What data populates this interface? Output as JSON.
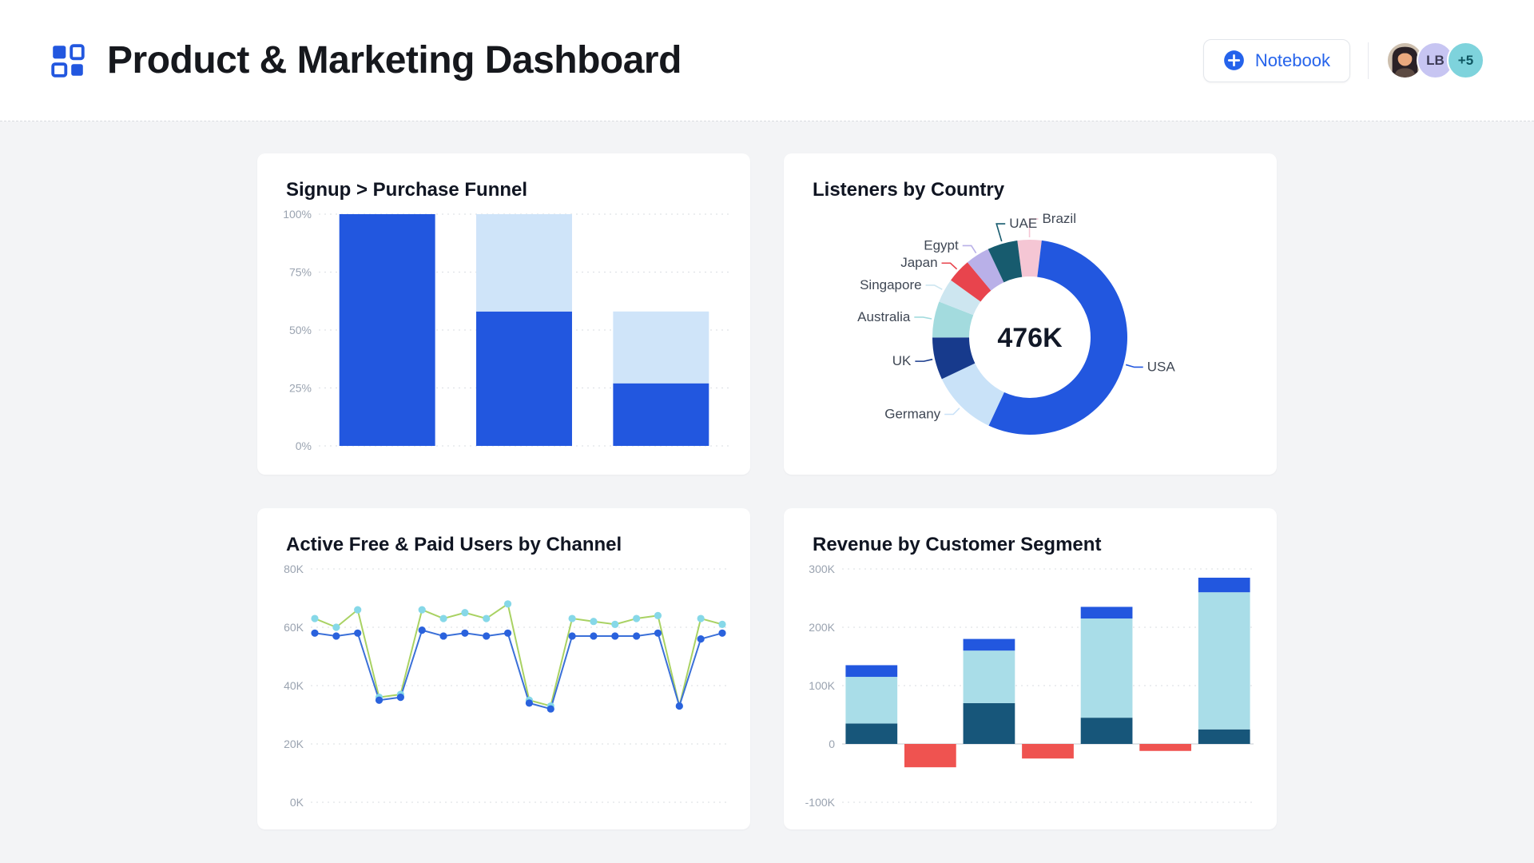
{
  "header": {
    "title": "Product & Marketing Dashboard",
    "notebook_label": "Notebook",
    "avatars": {
      "lb": "LB",
      "more": "+5"
    },
    "accent_color": "#2563eb"
  },
  "chart_data": [
    {
      "name": "funnel-chart",
      "type": "stacked-bar",
      "title": "Signup > Purchase Funnel",
      "ymin": 0,
      "ymax": 100,
      "grid": true,
      "yticks": [
        {
          "v": 100,
          "label": "100%"
        },
        {
          "v": 75,
          "label": "75%"
        },
        {
          "v": 50,
          "label": "50%"
        },
        {
          "v": 25,
          "label": "25%"
        },
        {
          "v": 0,
          "label": "0%"
        }
      ],
      "bar_ratio": 0.7,
      "solid_zero": false,
      "bars": [
        {
          "name": "step-1",
          "segments": [
            {
              "series": "converted",
              "value": 100,
              "color": "#2257df"
            }
          ]
        },
        {
          "name": "step-2",
          "segments": [
            {
              "series": "converted",
              "value": 58,
              "color": "#2257df"
            },
            {
              "series": "dropoff",
              "value": 42,
              "color": "#cfe4f9"
            }
          ]
        },
        {
          "name": "step-3",
          "segments": [
            {
              "series": "converted",
              "value": 27,
              "color": "#2257df"
            },
            {
              "series": "dropoff",
              "value": 31,
              "color": "#cfe4f9"
            }
          ]
        }
      ]
    },
    {
      "name": "listeners-donut",
      "type": "donut",
      "title": "Listeners by Country",
      "center_label": "476K",
      "start_angle": -97.4,
      "segments": [
        {
          "label": "Brazil",
          "value": 4,
          "color": "#f5c6d4"
        },
        {
          "label": "USA",
          "value": 55,
          "color": "#2257df"
        },
        {
          "label": "Germany",
          "value": 11,
          "color": "#c9e2f8"
        },
        {
          "label": "UK",
          "value": 7,
          "color": "#173a8c"
        },
        {
          "label": "Australia",
          "value": 6,
          "color": "#a3dbde"
        },
        {
          "label": "Singapore",
          "value": 4,
          "color": "#cde6f0"
        },
        {
          "label": "Japan",
          "value": 4,
          "color": "#e8444d"
        },
        {
          "label": "Egypt",
          "value": 4,
          "color": "#b9b0e8"
        },
        {
          "label": "UAE",
          "value": 5,
          "color": "#175b6e"
        }
      ]
    },
    {
      "name": "users-line",
      "type": "line",
      "title": "Active Free & Paid Users by Channel",
      "ymin": 0,
      "ymax": 80,
      "grid": true,
      "yticks": [
        {
          "v": 80,
          "label": "80K"
        },
        {
          "v": 60,
          "label": "60K"
        },
        {
          "v": 40,
          "label": "40K"
        },
        {
          "v": 20,
          "label": "20K"
        },
        {
          "v": 0,
          "label": "0K"
        }
      ],
      "series": [
        {
          "name": "Free",
          "line_color": "#a9d263",
          "marker_color": "#86d8e8",
          "values": [
            63,
            60,
            66,
            36,
            37,
            66,
            63,
            65,
            63,
            68,
            35,
            33,
            63,
            62,
            61,
            63,
            64,
            33,
            63,
            61
          ]
        },
        {
          "name": "Paid",
          "line_color": "#3b70d8",
          "marker_color": "#2a62dd",
          "values": [
            58,
            57,
            58,
            35,
            36,
            59,
            57,
            58,
            57,
            58,
            34,
            32,
            57,
            57,
            57,
            57,
            58,
            33,
            56,
            58
          ]
        }
      ]
    },
    {
      "name": "revenue-bars",
      "type": "stacked-bar",
      "title": "Revenue by Customer Segment",
      "ymin": -100,
      "ymax": 300,
      "grid": true,
      "yticks": [
        {
          "v": 300,
          "label": "300K"
        },
        {
          "v": 200,
          "label": "200K"
        },
        {
          "v": 100,
          "label": "100K"
        },
        {
          "v": 0,
          "label": "0"
        },
        {
          "v": -100,
          "label": "-100K"
        }
      ],
      "bar_ratio": 0.88,
      "solid_zero": true,
      "bars": [
        {
          "name": "segment-1",
          "segments": [
            {
              "series": "base",
              "value": 35,
              "color": "#17567a"
            },
            {
              "series": "growth",
              "value": 80,
              "color": "#a9dde8"
            },
            {
              "series": "top",
              "value": 20,
              "color": "#2257df"
            }
          ]
        },
        {
          "name": "loss-1",
          "segments": [
            {
              "series": "loss",
              "value": -40,
              "color": "#ef5350"
            }
          ]
        },
        {
          "name": "segment-2",
          "segments": [
            {
              "series": "base",
              "value": 70,
              "color": "#17567a"
            },
            {
              "series": "growth",
              "value": 90,
              "color": "#a9dde8"
            },
            {
              "series": "top",
              "value": 20,
              "color": "#2257df"
            }
          ]
        },
        {
          "name": "loss-2",
          "segments": [
            {
              "series": "loss",
              "value": -25,
              "color": "#ef5350"
            }
          ]
        },
        {
          "name": "segment-3",
          "segments": [
            {
              "series": "base",
              "value": 45,
              "color": "#17567a"
            },
            {
              "series": "growth",
              "value": 170,
              "color": "#a9dde8"
            },
            {
              "series": "top",
              "value": 20,
              "color": "#2257df"
            }
          ]
        },
        {
          "name": "loss-3",
          "segments": [
            {
              "series": "loss",
              "value": -12,
              "color": "#ef5350"
            }
          ]
        },
        {
          "name": "segment-4",
          "segments": [
            {
              "series": "base",
              "value": 25,
              "color": "#17567a"
            },
            {
              "series": "growth",
              "value": 235,
              "color": "#a9dde8"
            },
            {
              "series": "top",
              "value": 25,
              "color": "#2257df"
            }
          ]
        }
      ]
    }
  ]
}
